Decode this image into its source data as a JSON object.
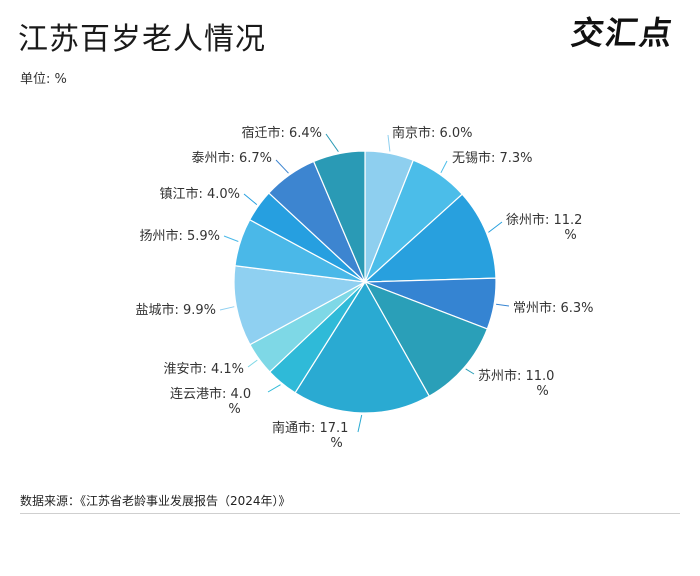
{
  "header": {
    "title": "江苏百岁老人情况",
    "unit": "单位: %",
    "logo_text": "交汇点"
  },
  "footer": {
    "source": "数据来源：《江苏省老龄事业发展报告（2024年）》"
  },
  "chart_data": {
    "type": "pie",
    "title": "江苏百岁老人情况",
    "unit": "%",
    "start": "12 o'clock, clockwise",
    "slices": [
      {
        "label": "南京市",
        "value": 6.0,
        "text": "南京市: 6.0%",
        "color": "#8ecfef"
      },
      {
        "label": "无锡市",
        "value": 7.3,
        "text": "无锡市: 7.3%",
        "color": "#4bbde9"
      },
      {
        "label": "徐州市",
        "value": 11.2,
        "text_lines": [
          "徐州市: 11.2",
          "%"
        ],
        "color": "#28a0de"
      },
      {
        "label": "常州市",
        "value": 6.3,
        "text": "常州市: 6.3%",
        "color": "#3584d2"
      },
      {
        "label": "苏州市",
        "value": 11.0,
        "text_lines": [
          "苏州市: 11.0",
          "%"
        ],
        "color": "#2a9fb8"
      },
      {
        "label": "南通市",
        "value": 17.1,
        "text_lines": [
          "南通市: 17.1",
          "%"
        ],
        "color": "#2aaad2"
      },
      {
        "label": "连云港市",
        "value": 4.0,
        "text_lines": [
          "连云港市: 4.0",
          "%"
        ],
        "color": "#2fbad8"
      },
      {
        "label": "淮安市",
        "value": 4.1,
        "text": "淮安市: 4.1%",
        "color": "#7ed8e6"
      },
      {
        "label": "盐城市",
        "value": 9.9,
        "text": "盐城市: 9.9%",
        "color": "#8fd0f1"
      },
      {
        "label": "扬州市",
        "value": 5.9,
        "text": "扬州市: 5.9%",
        "color": "#4ab8e8"
      },
      {
        "label": "镇江市",
        "value": 4.0,
        "text": "镇江市: 4.0%",
        "color": "#269fe0"
      },
      {
        "label": "泰州市",
        "value": 6.7,
        "text": "泰州市: 6.7%",
        "color": "#3d85d0"
      },
      {
        "label": "宿迁市",
        "value": 6.4,
        "text": "宿迁市: 6.4%",
        "color": "#2a9ab5"
      }
    ]
  }
}
